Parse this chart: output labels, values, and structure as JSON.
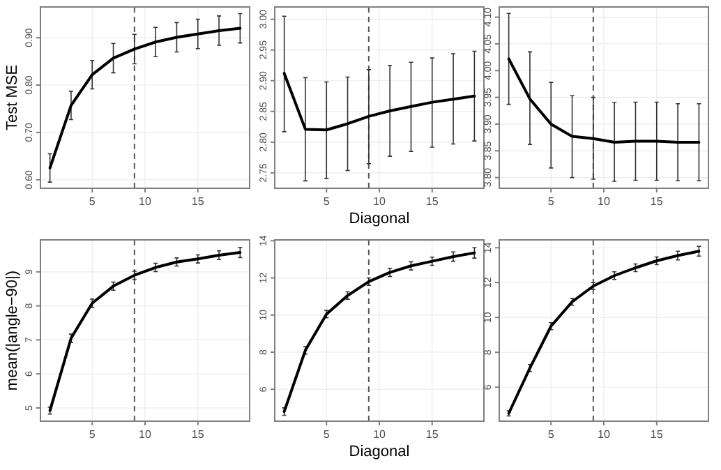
{
  "chart_data": [
    {
      "type": "line",
      "ylabel": "Test MSE",
      "x": [
        1,
        3,
        5,
        7,
        9,
        11,
        13,
        15,
        17,
        19
      ],
      "xlim": [
        0.1,
        19.9
      ],
      "xticks": [
        5,
        10,
        15
      ],
      "ylim": [
        0.582,
        0.965
      ],
      "yticks": [
        {
          "value": 0.6,
          "label": "0.60"
        },
        {
          "value": 0.7,
          "label": "0.70"
        },
        {
          "value": 0.8,
          "label": "0.80"
        },
        {
          "value": 0.9,
          "label": "0.90"
        }
      ],
      "grid": true,
      "marker": "none",
      "line_style": "solid",
      "ref_lines": [
        {
          "axis": "x",
          "value": 9,
          "line_style": "dashed",
          "color": "#555555"
        }
      ],
      "series": [
        {
          "color": "#000000",
          "values": [
            0.625,
            0.757,
            0.822,
            0.857,
            0.876,
            0.891,
            0.901,
            0.908,
            0.915,
            0.92
          ],
          "errors": [
            0.03,
            0.03,
            0.03,
            0.031,
            0.031,
            0.031,
            0.031,
            0.031,
            0.031,
            0.031
          ]
        }
      ]
    },
    {
      "type": "line",
      "xlabel": "Diagonal",
      "x": [
        1,
        3,
        5,
        7,
        9,
        11,
        13,
        15,
        17,
        19
      ],
      "xlim": [
        0.1,
        19.9
      ],
      "xticks": [
        5,
        10,
        15
      ],
      "ylim": [
        2.725,
        3.02
      ],
      "yticks": [
        {
          "value": 2.75,
          "label": "2.75"
        },
        {
          "value": 2.8,
          "label": "2.80"
        },
        {
          "value": 2.85,
          "label": "2.85"
        },
        {
          "value": 2.9,
          "label": "2.90"
        },
        {
          "value": 2.95,
          "label": "2.95"
        },
        {
          "value": 3,
          "label": "3.00"
        }
      ],
      "grid": true,
      "marker": "none",
      "line_style": "solid",
      "ref_lines": [
        {
          "axis": "x",
          "value": 9,
          "line_style": "dashed",
          "color": "#555555"
        }
      ],
      "series": [
        {
          "color": "#000000",
          "values": [
            2.912,
            2.821,
            2.82,
            2.83,
            2.842,
            2.851,
            2.858,
            2.865,
            2.87,
            2.875
          ],
          "errors": [
            [
              2.817,
              3.005
            ],
            [
              2.737,
              2.905
            ],
            [
              2.741,
              2.898
            ],
            [
              2.754,
              2.906
            ],
            [
              2.765,
              2.918
            ],
            [
              2.777,
              2.925
            ],
            [
              2.785,
              2.93
            ],
            [
              2.792,
              2.937
            ],
            [
              2.797,
              2.944
            ],
            [
              2.802,
              2.948
            ]
          ]
        }
      ]
    },
    {
      "type": "line",
      "x": [
        1,
        3,
        5,
        7,
        9,
        11,
        13,
        15,
        17,
        19
      ],
      "xlim": [
        0.1,
        19.9
      ],
      "xticks": [
        5,
        10,
        15
      ],
      "ylim": [
        3.78,
        4.119
      ],
      "yticks": [
        {
          "value": 3.8,
          "label": "3.80"
        },
        {
          "value": 3.85,
          "label": "3.85"
        },
        {
          "value": 3.9,
          "label": "3.90"
        },
        {
          "value": 3.95,
          "label": "3.95"
        },
        {
          "value": 4,
          "label": "4.00"
        },
        {
          "value": 4.05,
          "label": "4.05"
        },
        {
          "value": 4.1,
          "label": "4.10"
        }
      ],
      "grid": true,
      "marker": "none",
      "line_style": "solid",
      "ref_lines": [
        {
          "axis": "x",
          "value": 9,
          "line_style": "dashed",
          "color": "#555555"
        }
      ],
      "series": [
        {
          "color": "#000000",
          "values": [
            4.022,
            3.947,
            3.9,
            3.877,
            3.873,
            3.866,
            3.868,
            3.868,
            3.866,
            3.866
          ],
          "errors": [
            [
              3.937,
              4.107
            ],
            [
              3.862,
              4.035
            ],
            [
              3.818,
              3.978
            ],
            [
              3.8,
              3.953
            ],
            [
              3.797,
              3.95
            ],
            [
              3.793,
              3.94
            ],
            [
              3.795,
              3.941
            ],
            [
              3.795,
              3.941
            ],
            [
              3.794,
              3.938
            ],
            [
              3.794,
              3.938
            ]
          ]
        }
      ]
    },
    {
      "type": "line",
      "ylabel": "mean(|angle−90|)",
      "x": [
        1,
        3,
        5,
        7,
        9,
        11,
        13,
        15,
        17,
        19
      ],
      "xlim": [
        0.1,
        19.9
      ],
      "xticks": [
        5,
        10,
        15
      ],
      "ylim": [
        4.61,
        9.94
      ],
      "yticks": [
        5,
        6,
        7,
        8,
        9
      ],
      "grid": true,
      "line_style": "solid",
      "ref_lines": [
        {
          "axis": "x",
          "value": 9,
          "line_style": "dashed",
          "color": "#555555"
        }
      ],
      "series": [
        {
          "color": "#000000",
          "values": [
            4.92,
            7.05,
            8.08,
            8.58,
            8.9,
            9.13,
            9.29,
            9.38,
            9.49,
            9.57
          ],
          "errors": [
            0.1,
            0.12,
            0.12,
            0.12,
            0.12,
            0.12,
            0.12,
            0.12,
            0.13,
            0.15
          ]
        }
      ]
    },
    {
      "type": "line",
      "xlabel": "Diagonal",
      "x": [
        1,
        3,
        5,
        7,
        9,
        11,
        13,
        15,
        17,
        19
      ],
      "xlim": [
        0.1,
        19.9
      ],
      "xticks": [
        5,
        10,
        15
      ],
      "ylim": [
        4.28,
        14.05
      ],
      "yticks": [
        6,
        8,
        10,
        12,
        14
      ],
      "grid": true,
      "line_style": "solid",
      "ref_lines": [
        {
          "axis": "x",
          "value": 9,
          "line_style": "dashed",
          "color": "#555555"
        }
      ],
      "series": [
        {
          "color": "#000000",
          "values": [
            4.8,
            8.1,
            10.05,
            11.05,
            11.8,
            12.3,
            12.65,
            12.9,
            13.15,
            13.35
          ],
          "errors": [
            0.2,
            0.2,
            0.2,
            0.2,
            0.2,
            0.22,
            0.22,
            0.22,
            0.25,
            0.28
          ]
        }
      ]
    },
    {
      "type": "line",
      "x": [
        1,
        3,
        5,
        7,
        9,
        11,
        13,
        15,
        17,
        19
      ],
      "xlim": [
        0.1,
        19.9
      ],
      "xticks": [
        5,
        10,
        15
      ],
      "ylim": [
        4.05,
        14.45
      ],
      "yticks": [
        6,
        8,
        10,
        12,
        14
      ],
      "grid": true,
      "line_style": "solid",
      "ref_lines": [
        {
          "axis": "x",
          "value": 9,
          "line_style": "dashed",
          "color": "#555555"
        }
      ],
      "series": [
        {
          "color": "#000000",
          "values": [
            4.5,
            7.1,
            9.5,
            10.9,
            11.8,
            12.4,
            12.85,
            13.25,
            13.55,
            13.8
          ],
          "errors": [
            0.15,
            0.2,
            0.2,
            0.2,
            0.2,
            0.22,
            0.22,
            0.22,
            0.25,
            0.28
          ]
        }
      ]
    }
  ]
}
